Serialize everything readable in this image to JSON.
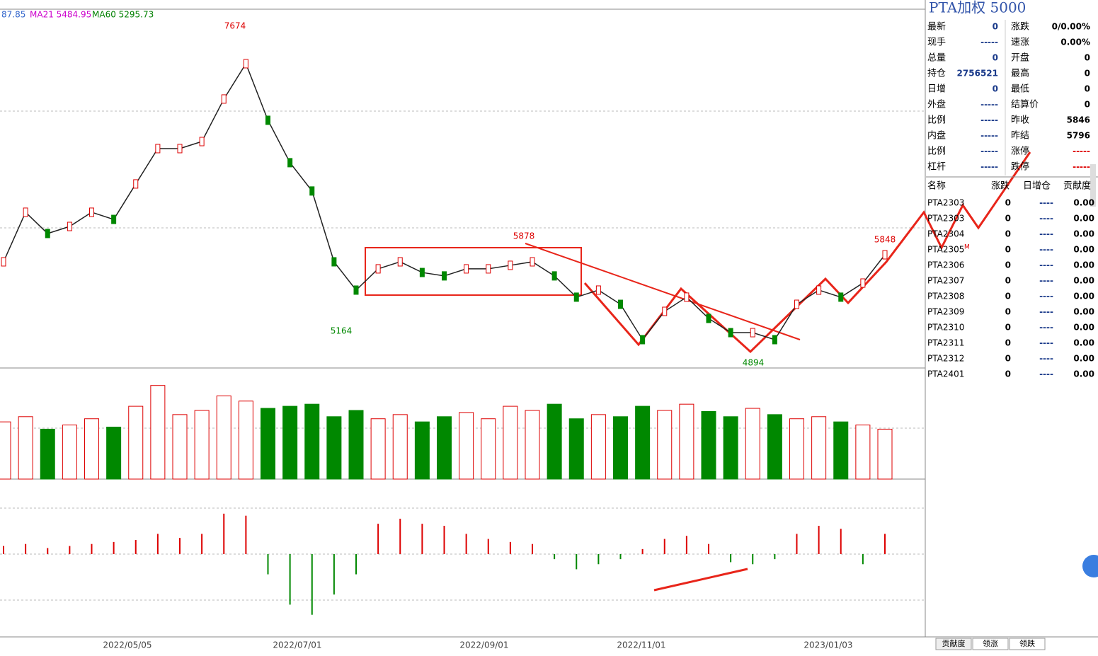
{
  "legend": {
    "ma_partial": "87.85",
    "ma21": "MA21 5484.95",
    "ma60": "MA60 5295.73"
  },
  "chart_data": {
    "type": "line",
    "annotations": [
      "7674",
      "5164",
      "5878",
      "4894",
      "5848"
    ],
    "date_labels": [
      "2022/05/05",
      "2022/07/01",
      "2022/09/01",
      "2022/11/01",
      "2023/01/03"
    ],
    "color": "#222222",
    "ylim": [
      4750,
      7900
    ],
    "values": [
      5684,
      6120,
      5933,
      5995,
      6120,
      6057,
      6369,
      6680,
      6680,
      6742,
      7116,
      7427,
      6929,
      6556,
      6307,
      5684,
      5435,
      5622,
      5684,
      5590,
      5560,
      5622,
      5622,
      5653,
      5684,
      5560,
      5373,
      5435,
      5310,
      4999,
      5248,
      5373,
      5186,
      5061,
      5061,
      4999,
      5310,
      5435,
      5373,
      5497,
      5746
    ],
    "volume": [
      55,
      60,
      48,
      52,
      58,
      50,
      70,
      90,
      62,
      66,
      80,
      75,
      68,
      70,
      72,
      60,
      66,
      58,
      62,
      55,
      60,
      64,
      58,
      70,
      66,
      72,
      58,
      62,
      60,
      70,
      66,
      72,
      65,
      60,
      68,
      62,
      58,
      60,
      55,
      52,
      48
    ],
    "volume_ylim": [
      0,
      100
    ],
    "macd": [
      8,
      10,
      6,
      8,
      10,
      12,
      14,
      20,
      16,
      20,
      40,
      38,
      -20,
      -50,
      -60,
      -40,
      -20,
      30,
      35,
      30,
      28,
      20,
      15,
      12,
      10,
      -5,
      -15,
      -10,
      -5,
      5,
      15,
      18,
      10,
      -8,
      -10,
      -5,
      20,
      28,
      25,
      -10,
      20
    ],
    "macd_ylim": [
      -70,
      70
    ]
  },
  "quote": {
    "title": "PTA加权  5000",
    "rows": [
      [
        "最新",
        "0",
        "涨跌",
        "0/0.00%"
      ],
      [
        "现手",
        "-----",
        "速涨",
        "0.00%"
      ],
      [
        "总量",
        "0",
        "开盘",
        "0"
      ],
      [
        "持仓",
        "2756521",
        "最高",
        "0"
      ],
      [
        "日增",
        "0",
        "最低",
        "0"
      ],
      [
        "外盘",
        "-----",
        "结算价",
        "0"
      ],
      [
        "比例",
        "-----",
        "昨收",
        "5846"
      ],
      [
        "内盘",
        "-----",
        "昨结",
        "5796"
      ],
      [
        "比例",
        "-----",
        "涨停",
        "-----"
      ],
      [
        "杠杆",
        "-----",
        "跌停",
        "-----"
      ]
    ]
  },
  "contracts": {
    "header": [
      "名称",
      "涨跌",
      "日增仓",
      "贡献度"
    ],
    "mark": "M",
    "rows": [
      [
        "PTA2303",
        "0",
        "----",
        "0.00"
      ],
      [
        "PTA2303",
        "0",
        "----",
        "0.00"
      ],
      [
        "PTA2304",
        "0",
        "----",
        "0.00"
      ],
      [
        "PTA2305",
        "0",
        "----",
        "0.00"
      ],
      [
        "PTA2306",
        "0",
        "----",
        "0.00"
      ],
      [
        "PTA2307",
        "0",
        "----",
        "0.00"
      ],
      [
        "PTA2308",
        "0",
        "----",
        "0.00"
      ],
      [
        "PTA2309",
        "0",
        "----",
        "0.00"
      ],
      [
        "PTA2310",
        "0",
        "----",
        "0.00"
      ],
      [
        "PTA2311",
        "0",
        "----",
        "0.00"
      ],
      [
        "PTA2312",
        "0",
        "----",
        "0.00"
      ],
      [
        "PTA2401",
        "0",
        "----",
        "0.00"
      ]
    ]
  },
  "tabs": [
    "贡献度",
    "领涨",
    "领跌"
  ]
}
